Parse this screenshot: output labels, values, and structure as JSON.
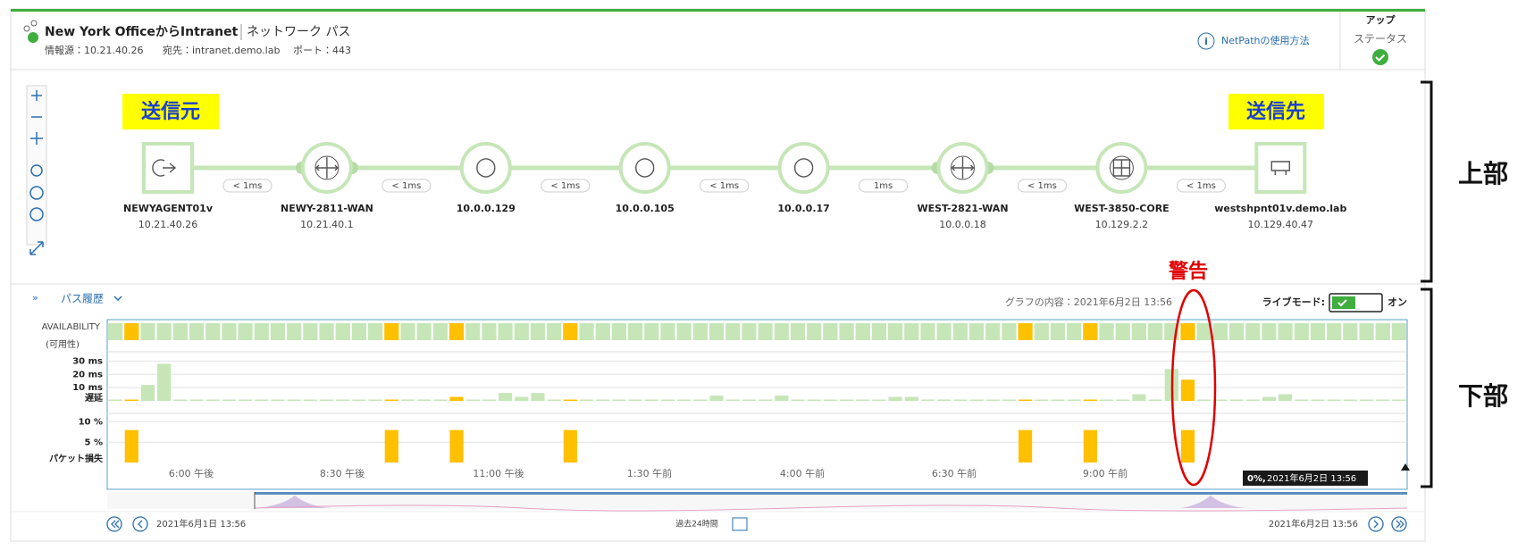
{
  "header": {
    "title": "New York OfficeからIntranet",
    "page_type": "ネットワーク パス",
    "source": "情報源：10.21.40.26",
    "destination": "宛先：intranet.demo.lab",
    "port": "ポート：443",
    "help": "NetPathの使用方法",
    "status_title": "アップ",
    "status_label": "ステータス"
  },
  "annotations": {
    "source": "送信元",
    "destination": "送信先",
    "warning": "警告",
    "upper": "上部",
    "lower": "下部"
  },
  "nodes": [
    {
      "name": "NEWYAGENT01v",
      "ip": "10.21.40.26"
    },
    {
      "name": "NEWY-2811-WAN",
      "ip": "10.21.40.1"
    },
    {
      "name": "10.0.0.129"
    },
    {
      "name": "10.0.0.105"
    },
    {
      "name": "10.0.0.17"
    },
    {
      "name": "WEST-2821-WAN",
      "ip": "10.0.0.18"
    },
    {
      "name": "WEST-3850-CORE",
      "ip": "10.129.2.2"
    },
    {
      "name": "westshpnt01v.demo.lab",
      "ip": "10.129.40.47"
    }
  ],
  "links": [
    "< 1ms",
    "< 1ms",
    "< 1ms",
    "< 1ms",
    "1ms",
    "< 1ms",
    "< 1ms"
  ],
  "history": {
    "title": "パス履歴",
    "graph_content": "グラフの内容：2021年6月2日 13:56",
    "live_mode": "ライブモード:",
    "live_state": "オン",
    "availability_label": "AVAILABILITY",
    "availability_sub": "(可用性)",
    "ok_color": "#c6e6b8",
    "warn_color": "#ffc000",
    "latency": {
      "label": "遅延",
      "ylim": [
        0,
        35
      ],
      "yticks": [
        {
          "value": 10,
          "label": "10 ms"
        },
        {
          "value": 20,
          "label": "20 ms"
        },
        {
          "value": 30,
          "label": "30 ms"
        }
      ],
      "values": [
        1,
        1,
        12,
        28,
        1,
        1,
        1,
        1,
        1,
        1,
        1,
        1,
        1,
        1,
        1,
        1,
        1,
        1,
        1,
        1,
        1,
        3,
        1,
        1,
        6,
        3,
        6,
        1,
        1,
        1,
        1,
        1,
        1,
        1,
        1,
        1,
        1,
        4,
        1,
        1,
        1,
        4,
        1,
        1,
        1,
        1,
        1,
        1,
        3,
        3,
        1,
        1,
        1,
        1,
        1,
        1,
        1,
        1,
        1,
        1,
        1,
        1,
        1,
        5,
        1,
        24,
        16,
        1,
        1,
        1,
        1,
        3,
        5,
        1,
        1,
        1,
        1,
        1,
        1,
        1
      ]
    },
    "packet_loss": {
      "label": "パケット損失",
      "ylim": [
        0,
        11
      ],
      "yticks": [
        {
          "value": 5,
          "label": "5 %"
        },
        {
          "value": 10,
          "label": "10 %"
        }
      ],
      "values": [
        0,
        8,
        0,
        0,
        0,
        0,
        0,
        0,
        0,
        0,
        0,
        0,
        0,
        0,
        0,
        0,
        0,
        8,
        0,
        0,
        0,
        8,
        0,
        0,
        0,
        0,
        0,
        0,
        8,
        0,
        0,
        0,
        0,
        0,
        0,
        0,
        0,
        0,
        0,
        0,
        0,
        0,
        0,
        0,
        0,
        0,
        0,
        0,
        0,
        0,
        0,
        0,
        0,
        0,
        0,
        0,
        8,
        0,
        0,
        0,
        8,
        0,
        0,
        0,
        0,
        0,
        8,
        0,
        0,
        0,
        0,
        0,
        0,
        0,
        0,
        0,
        0,
        0,
        0,
        0
      ]
    },
    "x_labels": [
      "6:00 午後",
      "8:30 午後",
      "11:00 午後",
      "1:30 午前",
      "4:00 午前",
      "6:30 午前",
      "9:00 午前"
    ],
    "tooltip": {
      "value": "0%,",
      "time": "2021年6月2日 13:56"
    }
  },
  "footer": {
    "start": "2021年6月1日 13:56",
    "range": "過去24時間",
    "end": "2021年6月2日 13:56"
  }
}
